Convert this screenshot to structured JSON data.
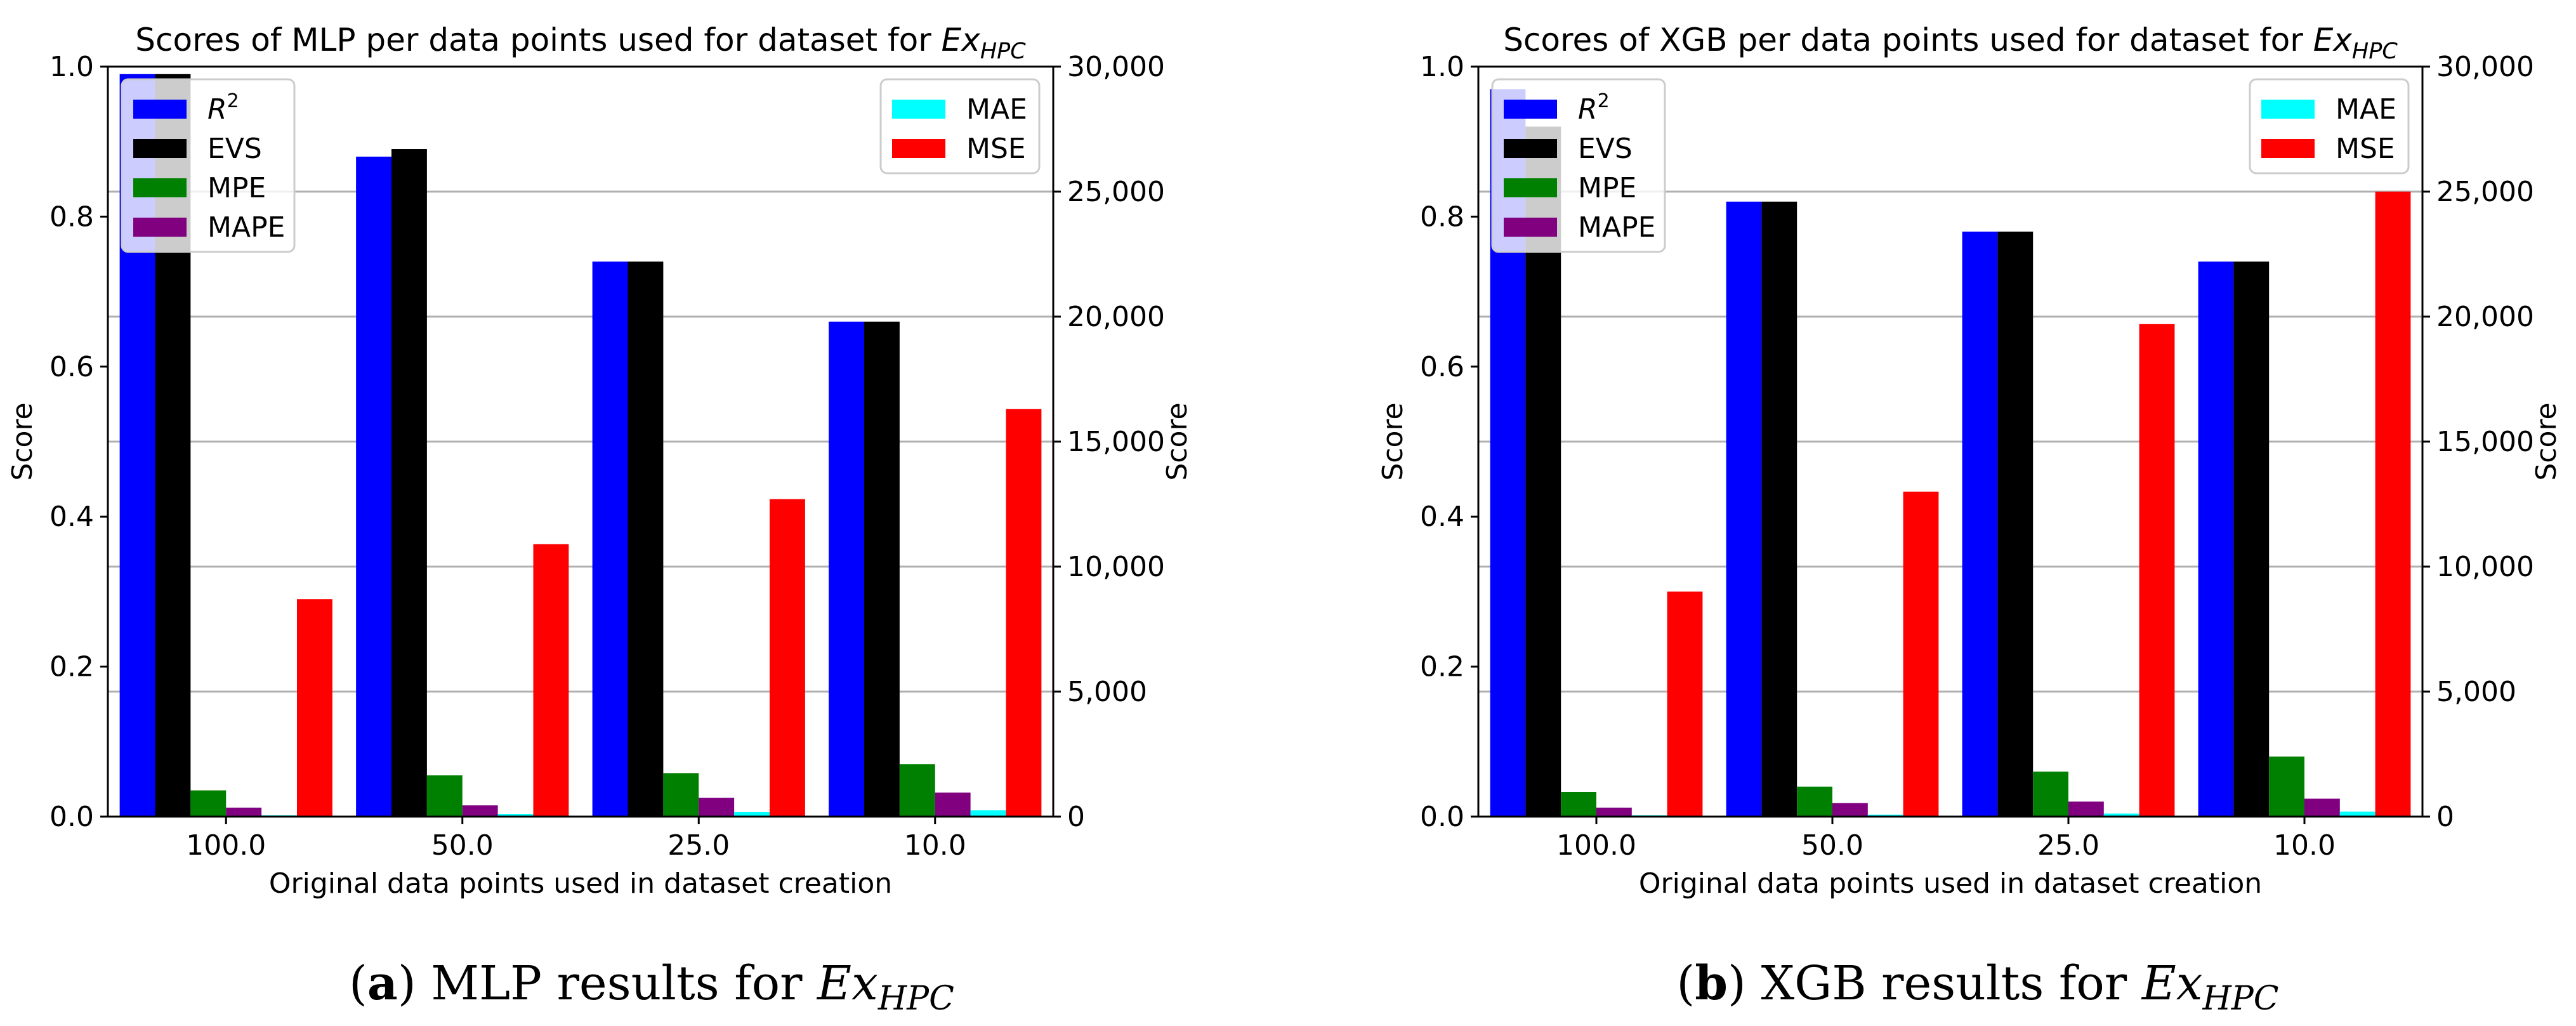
{
  "captions": [
    {
      "letter": "a",
      "text": " MLP results for ",
      "math_base": "Ex",
      "math_sub": "HPC"
    },
    {
      "letter": "b",
      "text": " XGB results for ",
      "math_base": "Ex",
      "math_sub": "HPC"
    }
  ],
  "chart_data": [
    {
      "type": "bar",
      "title": "Scores of MLP per data points used for dataset for ",
      "title_math_base": "Ex",
      "title_math_sub": "HPC",
      "xlabel": "Original data points used in dataset creation",
      "ylabel": "Score",
      "ylabel_right": "Score",
      "categories": [
        "100.0",
        "50.0",
        "25.0",
        "10.0"
      ],
      "ylim": [
        0,
        1.0
      ],
      "yticks": [
        "0.0",
        "0.2",
        "0.4",
        "0.6",
        "0.8",
        "1.0"
      ],
      "ylim_right": [
        0,
        30000
      ],
      "yticks_right": [
        "0",
        "5,000",
        "10,000",
        "15,000",
        "20,000",
        "25,000",
        "30,000"
      ],
      "grid": "horizontal",
      "legend_left": "top-left",
      "legend_right": "top-right",
      "series": [
        {
          "name": "R",
          "sup": "2",
          "axis": "left",
          "color": "#0000ff",
          "values": [
            0.99,
            0.88,
            0.74,
            0.66
          ]
        },
        {
          "name": "EVS",
          "axis": "left",
          "color": "#000000",
          "values": [
            0.99,
            0.89,
            0.74,
            0.66
          ]
        },
        {
          "name": "MPE",
          "axis": "left",
          "color": "#008000",
          "values": [
            0.035,
            0.055,
            0.058,
            0.07
          ]
        },
        {
          "name": "MAPE",
          "axis": "left",
          "color": "#800080",
          "values": [
            0.012,
            0.015,
            0.025,
            0.032
          ]
        },
        {
          "name": "MAE",
          "axis": "right",
          "color": "#00ffff",
          "values": [
            50,
            100,
            180,
            250
          ]
        },
        {
          "name": "MSE",
          "axis": "right",
          "color": "#ff0000",
          "values": [
            8700,
            10900,
            12700,
            16300
          ]
        }
      ]
    },
    {
      "type": "bar",
      "title": "Scores of XGB per data points used for dataset for ",
      "title_math_base": "Ex",
      "title_math_sub": "HPC",
      "xlabel": "Original data points used in dataset creation",
      "ylabel": "Score",
      "ylabel_right": "Score",
      "categories": [
        "100.0",
        "50.0",
        "25.0",
        "10.0"
      ],
      "ylim": [
        0,
        1.0
      ],
      "yticks": [
        "0.0",
        "0.2",
        "0.4",
        "0.6",
        "0.8",
        "1.0"
      ],
      "ylim_right": [
        0,
        30000
      ],
      "yticks_right": [
        "0",
        "5,000",
        "10,000",
        "15,000",
        "20,000",
        "25,000",
        "30,000"
      ],
      "grid": "horizontal",
      "legend_left": "top-left",
      "legend_right": "top-right",
      "series": [
        {
          "name": "R",
          "sup": "2",
          "axis": "left",
          "color": "#0000ff",
          "values": [
            0.97,
            0.82,
            0.78,
            0.74
          ]
        },
        {
          "name": "EVS",
          "axis": "left",
          "color": "#000000",
          "values": [
            0.92,
            0.82,
            0.78,
            0.74
          ]
        },
        {
          "name": "MPE",
          "axis": "left",
          "color": "#008000",
          "values": [
            0.033,
            0.04,
            0.06,
            0.08
          ]
        },
        {
          "name": "MAPE",
          "axis": "left",
          "color": "#800080",
          "values": [
            0.012,
            0.018,
            0.02,
            0.024
          ]
        },
        {
          "name": "MAE",
          "axis": "right",
          "color": "#00ffff",
          "values": [
            50,
            80,
            120,
            200
          ]
        },
        {
          "name": "MSE",
          "axis": "right",
          "color": "#ff0000",
          "values": [
            9000,
            13000,
            19700,
            25000
          ]
        }
      ]
    }
  ]
}
